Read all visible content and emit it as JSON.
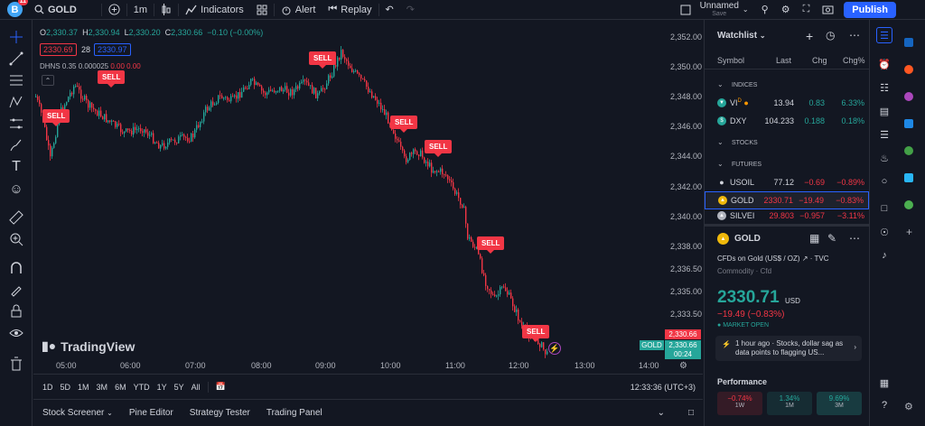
{
  "topbar": {
    "avatar_letter": "B",
    "avatar_badge": "11",
    "symbol": "GOLD",
    "interval": "1m",
    "indicators": "Indicators",
    "alert": "Alert",
    "replay": "Replay",
    "layout_name": "Unnamed",
    "layout_status": "Save",
    "publish": "Publish"
  },
  "legend": {
    "o_label": "O",
    "o": "2,330.37",
    "h_label": "H",
    "h": "2,330.94",
    "l_label": "L",
    "l": "2,330.20",
    "c_label": "C",
    "c": "2,330.66",
    "change": "−0.10 (−0.00%)",
    "sell_price": "2330.69",
    "spread": "28",
    "buy_price": "2330.97"
  },
  "indicator": {
    "name": "DHNS",
    "param": "0.35",
    "v1": "0.000025",
    "v2": "0.00",
    "v3": "0.00"
  },
  "signals": {
    "label": "SELL"
  },
  "yaxis": [
    "2,352.00",
    "2,350.00",
    "2,348.00",
    "2,346.00",
    "2,344.00",
    "2,342.00",
    "2,340.00",
    "2,338.00",
    "2,336.50",
    "2,335.00",
    "2,333.50"
  ],
  "xaxis": [
    "05:00",
    "06:00",
    "07:00",
    "08:00",
    "09:00",
    "10:00",
    "11:00",
    "12:00",
    "13:00",
    "14:00"
  ],
  "price_tags": {
    "symbol": "GOLD",
    "price_red": "2,330.66",
    "price_green": "2,330.66",
    "countdown": "00:24"
  },
  "logo": "TradingView",
  "timeframes": [
    "1D",
    "5D",
    "1M",
    "3M",
    "6M",
    "YTD",
    "1Y",
    "5Y",
    "All"
  ],
  "clock": "12:33:36 (UTC+3)",
  "bottom_tabs": [
    "Stock Screener",
    "Pine Editor",
    "Strategy Tester",
    "Trading Panel"
  ],
  "watchlist": {
    "title": "Watchlist",
    "columns": [
      "Symbol",
      "Last",
      "Chg",
      "Chg%"
    ],
    "sections": {
      "indices": "INDICES",
      "stocks": "STOCKS",
      "futures": "FUTURES"
    },
    "rows": [
      {
        "sym": "VI",
        "suffix": "D",
        "last": "13.94",
        "chg": "0.83",
        "chgp": "6.33%",
        "dir": "up"
      },
      {
        "sym": "DXY",
        "last": "104.233",
        "chg": "0.188",
        "chgp": "0.18%",
        "dir": "up"
      },
      {
        "sym": "USOIL",
        "last": "77.12",
        "chg": "−0.69",
        "chgp": "−0.89%",
        "dir": "down"
      },
      {
        "sym": "GOLD",
        "last": "2330.71",
        "chg": "−19.49",
        "chgp": "−0.83%",
        "dir": "down"
      },
      {
        "sym": "SILVEI",
        "last": "29.803",
        "chg": "−0.957",
        "chgp": "−3.11%",
        "dir": "down"
      }
    ]
  },
  "details": {
    "symbol": "GOLD",
    "name": "CFDs on Gold (US$ / OZ)",
    "source": "TVC",
    "type": "Commodity",
    "subtype": "Cfd",
    "price": "2330.71",
    "currency": "USD",
    "change": "−19.49 (−0.83%)",
    "market": "MARKET OPEN",
    "news": "1 hour ago · Stocks, dollar sag as data points to flagging US..."
  },
  "performance": {
    "title": "Performance",
    "cells": [
      {
        "value": "−0.74%",
        "label": "1W",
        "dir": "down"
      },
      {
        "value": "1.34%",
        "label": "1M",
        "dir": "up"
      },
      {
        "value": "9.69%",
        "label": "3M",
        "dir": "up"
      }
    ]
  },
  "colors": {
    "up": "#26a69a",
    "down": "#f23645",
    "accent": "#2962ff",
    "bg": "#131722"
  }
}
